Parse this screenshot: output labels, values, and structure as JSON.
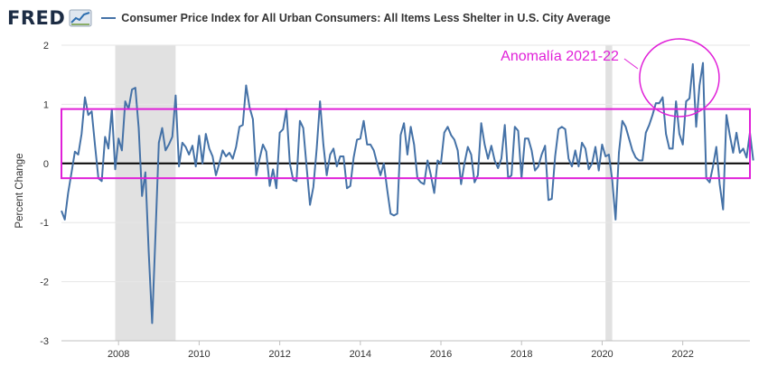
{
  "header": {
    "logo": "FRED",
    "logo_icon": "chart-line-icon"
  },
  "colors": {
    "series": "#4572a7",
    "recession": "#e1e1e1",
    "annotation": "#e020d8",
    "zero_line": "#000000",
    "grid": "#e6e6e6"
  },
  "chart_data": {
    "type": "line",
    "title": "Consumer Price Index for All Urban Consumers: All Items Less Shelter in U.S. City Average",
    "xlabel": "",
    "ylabel": "Percent Change",
    "xlim": [
      "2006-08",
      "2023-09"
    ],
    "ylim": [
      -3,
      2
    ],
    "y_ticks": [
      2,
      1,
      0,
      -1,
      -2,
      -3
    ],
    "x_ticks": [
      "2008",
      "2010",
      "2012",
      "2014",
      "2016",
      "2018",
      "2020",
      "2022"
    ],
    "grid": true,
    "recession_bands": [
      {
        "start": "2007-12",
        "end": "2009-06"
      },
      {
        "start": "2020-02",
        "end": "2020-04"
      }
    ],
    "annotations": [
      {
        "type": "rectangle",
        "y_range": [
          -0.25,
          0.92
        ],
        "x_range": [
          "2006-08",
          "2023-09"
        ]
      },
      {
        "type": "ellipse",
        "label": "Anomalía 2021-22",
        "center": [
          "2021-12",
          1.45
        ]
      }
    ],
    "series": [
      {
        "name": "Consumer Price Index for All Urban Consumers: All Items Less Shelter in U.S. City Average",
        "start": "2006-08",
        "frequency": "monthly",
        "values": [
          -0.8,
          -0.95,
          -0.5,
          -0.15,
          0.2,
          0.15,
          0.5,
          1.12,
          0.82,
          0.88,
          0.3,
          -0.25,
          -0.3,
          0.45,
          0.25,
          0.92,
          -0.1,
          0.42,
          0.22,
          1.05,
          0.92,
          1.25,
          1.28,
          0.6,
          -0.55,
          -0.15,
          -1.5,
          -2.7,
          -1.2,
          0.35,
          0.6,
          0.22,
          0.32,
          0.45,
          1.15,
          -0.05,
          0.35,
          0.28,
          0.15,
          0.3,
          -0.05,
          0.47,
          0.0,
          0.5,
          0.25,
          0.12,
          -0.2,
          0.0,
          0.22,
          0.12,
          0.18,
          0.08,
          0.28,
          0.62,
          0.65,
          1.32,
          0.95,
          0.75,
          -0.2,
          0.08,
          0.32,
          0.2,
          -0.38,
          -0.1,
          -0.42,
          0.52,
          0.58,
          0.92,
          0.0,
          -0.28,
          -0.3,
          0.72,
          0.6,
          -0.05,
          -0.7,
          -0.4,
          0.25,
          1.05,
          0.32,
          -0.2,
          0.15,
          0.25,
          -0.05,
          0.12,
          0.12,
          -0.42,
          -0.38,
          0.1,
          0.4,
          0.42,
          0.72,
          0.32,
          0.32,
          0.22,
          0.0,
          -0.2,
          0.0,
          -0.45,
          -0.85,
          -0.88,
          -0.85,
          0.48,
          0.68,
          0.15,
          0.62,
          0.32,
          -0.25,
          -0.32,
          -0.35,
          0.05,
          -0.2,
          -0.5,
          0.05,
          0.0,
          0.52,
          0.62,
          0.48,
          0.4,
          0.22,
          -0.35,
          0.0,
          0.28,
          0.15,
          -0.32,
          -0.2,
          0.68,
          0.32,
          0.08,
          0.3,
          0.05,
          -0.08,
          0.08,
          0.65,
          -0.25,
          -0.2,
          0.62,
          0.55,
          -0.25,
          0.42,
          0.42,
          0.22,
          -0.12,
          -0.05,
          0.15,
          0.3,
          -0.62,
          -0.6,
          0.12,
          0.58,
          0.62,
          0.58,
          0.08,
          -0.05,
          0.22,
          -0.05,
          0.35,
          0.25,
          -0.1,
          0.0,
          0.28,
          -0.12,
          0.32,
          0.12,
          0.15,
          -0.28,
          -0.95,
          0.18,
          0.72,
          0.62,
          0.42,
          0.22,
          0.1,
          0.05,
          0.05,
          0.52,
          0.65,
          0.82,
          1.02,
          1.02,
          1.12,
          0.5,
          0.25,
          0.25,
          1.05,
          0.5,
          0.32,
          1.05,
          1.1,
          1.68,
          0.62,
          1.32,
          1.7,
          -0.25,
          -0.32,
          -0.05,
          0.28,
          -0.35,
          -0.78,
          0.82,
          0.48,
          0.18,
          0.52,
          0.18,
          0.25,
          0.1,
          0.52,
          0.05
        ]
      }
    ]
  }
}
